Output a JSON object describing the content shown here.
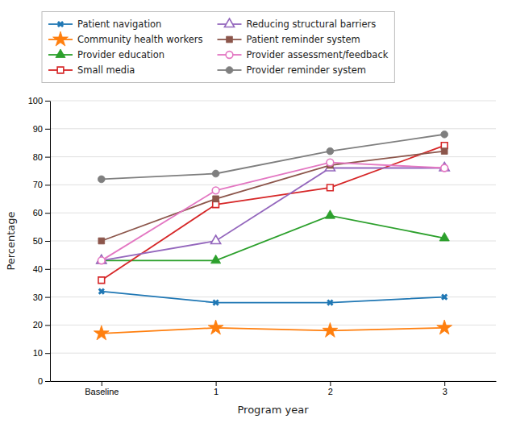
{
  "chart_data": {
    "type": "line",
    "xlabel": "Program year",
    "ylabel": "Percentage",
    "categories": [
      "Baseline",
      "1",
      "2",
      "3"
    ],
    "series": [
      {
        "name": "Patient navigation",
        "values": [
          32,
          28,
          28,
          30
        ],
        "marker": "x"
      },
      {
        "name": "Community health workers",
        "values": [
          17,
          19,
          18,
          19
        ],
        "marker": "star"
      },
      {
        "name": "Provider education",
        "values": [
          43,
          43,
          59,
          51
        ],
        "marker": "triangle"
      },
      {
        "name": "Small media",
        "values": [
          36,
          63,
          69,
          84
        ],
        "marker": "square-open"
      },
      {
        "name": "Reducing structural barriers",
        "values": [
          43,
          50,
          76,
          76
        ],
        "marker": "triangle-open"
      },
      {
        "name": "Patient reminder system",
        "values": [
          50,
          65,
          77,
          82
        ],
        "marker": "square"
      },
      {
        "name": "Provider assessment/feedback",
        "values": [
          43,
          68,
          78,
          76
        ],
        "marker": "circle-open"
      },
      {
        "name": "Provider reminder system",
        "values": [
          72,
          74,
          82,
          88
        ],
        "marker": "circle"
      }
    ],
    "ylim": [
      0,
      100
    ],
    "yticks": [
      0,
      10,
      20,
      30,
      40,
      50,
      60,
      70,
      80,
      90,
      100
    ],
    "grid": true,
    "legend": "top"
  }
}
